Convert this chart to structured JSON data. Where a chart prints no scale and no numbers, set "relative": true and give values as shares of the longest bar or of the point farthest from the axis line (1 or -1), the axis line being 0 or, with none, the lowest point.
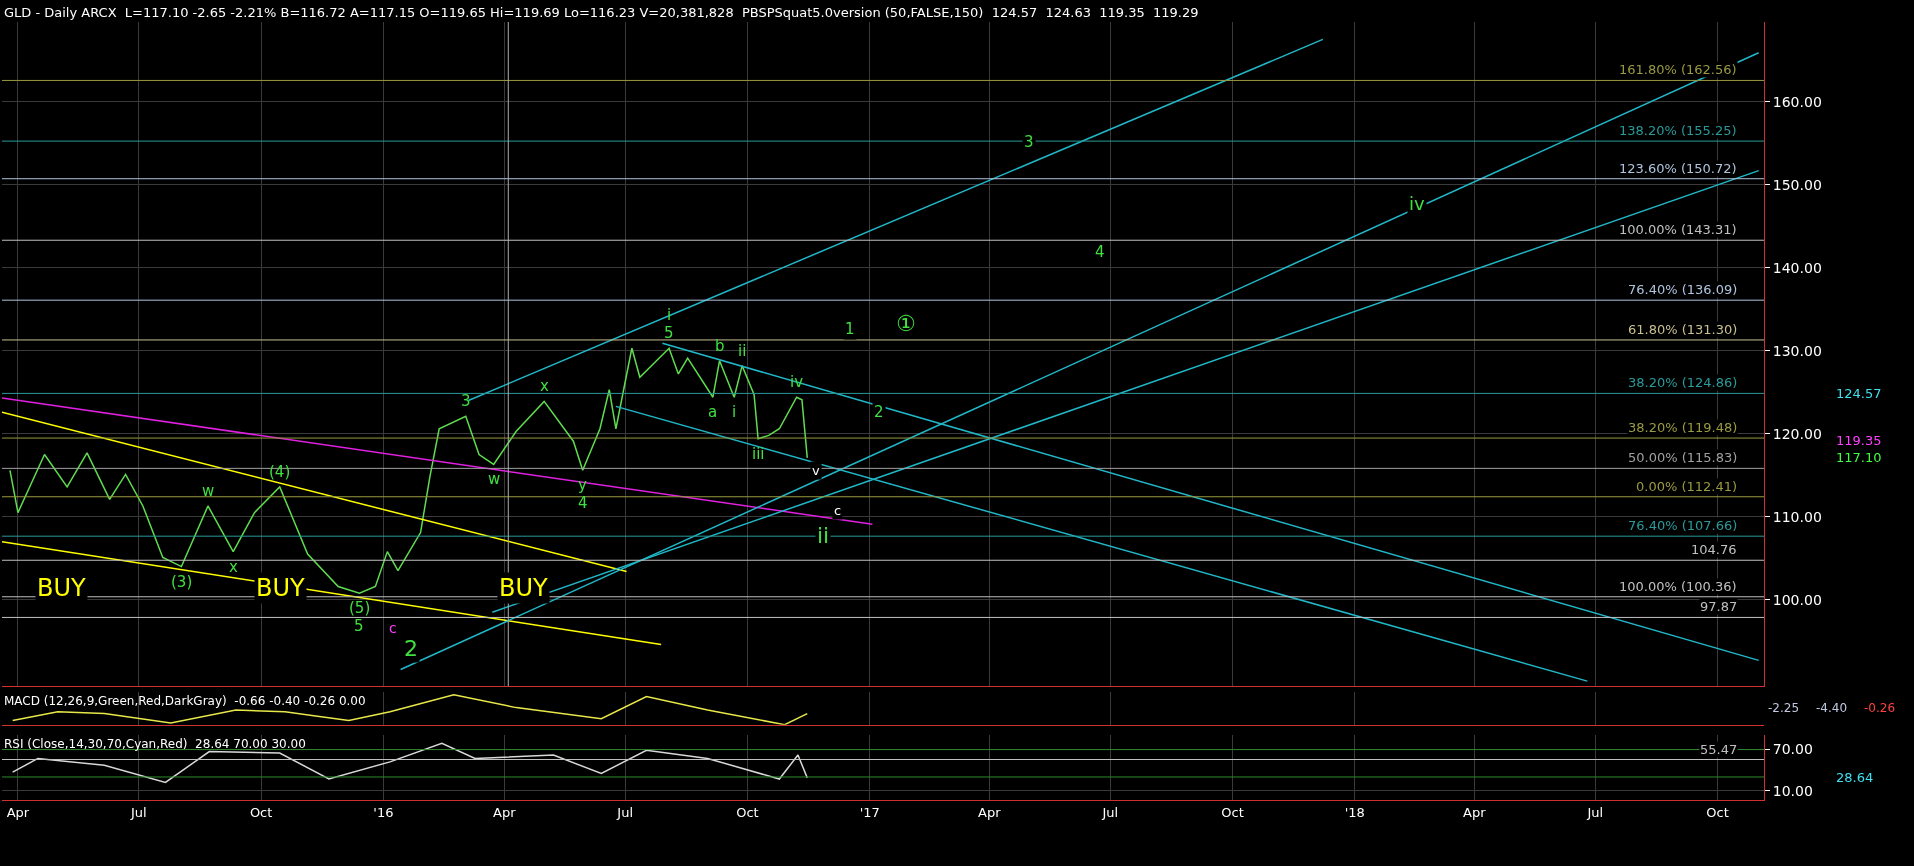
{
  "chart_data": [
    {
      "type": "line",
      "title": "GLD - Daily ARCX  L=117.10 -2.65 -2.21% B=116.72 A=117.15 O=119.65 Hi=119.69 Lo=116.23 V=20,381,828  PBSPSquat5.0version (50,FALSE,150)  124.57  124.63  119.35  119.29",
      "series": [
        {
          "color": "#5fdc4f",
          "x": [
            "2015-03-26",
            "2015-04-01",
            "2015-04-21",
            "2015-05-08",
            "2015-05-23",
            "2015-06-09",
            "2015-06-21",
            "2015-07-04",
            "2015-07-19",
            "2015-08-02",
            "2015-08-22",
            "2015-09-10",
            "2015-09-26",
            "2015-10-15",
            "2015-11-05",
            "2015-11-28",
            "2015-12-14",
            "2015-12-26",
            "2016-01-04",
            "2016-01-12",
            "2016-01-29",
            "2016-02-05",
            "2016-02-12",
            "2016-03-03",
            "2016-03-13",
            "2016-03-24",
            "2016-04-10",
            "2016-05-01",
            "2016-05-23",
            "2016-05-30",
            "2016-06-12",
            "2016-06-19",
            "2016-06-24",
            "2016-07-06",
            "2016-07-12",
            "2016-08-03",
            "2016-08-10",
            "2016-08-17",
            "2016-09-05",
            "2016-09-10",
            "2016-09-21",
            "2016-09-27",
            "2016-10-06",
            "2016-10-09",
            "2016-10-17",
            "2016-10-25",
            "2016-11-07",
            "2016-11-11",
            "2016-11-15"
          ],
          "values": [
            115.6,
            110.5,
            117.5,
            113.6,
            117.7,
            112.1,
            115.1,
            111.3,
            105.1,
            104.0,
            111.3,
            105.8,
            110.5,
            113.6,
            105.5,
            101.6,
            100.8,
            101.6,
            105.8,
            103.5,
            108.1,
            114.8,
            120.6,
            122.1,
            117.5,
            116.3,
            120.3,
            123.9,
            119.1,
            115.6,
            120.6,
            125.3,
            120.6,
            130.3,
            126.8,
            130.3,
            127.2,
            129.1,
            124.4,
            128.8,
            124.4,
            128.2,
            124.7,
            119.4,
            119.8,
            120.6,
            124.4,
            124.1,
            117.1
          ]
        },
        {
          "color": "#e020e0",
          "x": [
            "2015-03-20",
            "2017-01-03"
          ],
          "values": [
            124.3,
            109.1
          ]
        },
        {
          "color": "#ffff00",
          "x": [
            "2015-03-20",
            "2016-07-02"
          ],
          "values": [
            122.6,
            103.4
          ]
        },
        {
          "color": "#ffff00",
          "x": [
            "2015-03-20",
            "2016-07-28"
          ],
          "values": [
            107.0,
            94.6
          ]
        },
        {
          "color": "#20b8c8",
          "x": [
            "2016-03-05",
            "2017-12-08"
          ],
          "values": [
            124.0,
            167.5
          ]
        },
        {
          "color": "#20b8c8",
          "x": [
            "2016-01-14",
            "2018-11-01"
          ],
          "values": [
            91.6,
            165.9
          ]
        },
        {
          "color": "#20b8c8",
          "x": [
            "2016-03-23",
            "2018-11-01"
          ],
          "values": [
            98.5,
            151.7
          ]
        },
        {
          "color": "#20b8c8",
          "x": [
            "2016-07-29",
            "2018-11-01"
          ],
          "values": [
            130.9,
            92.7
          ]
        },
        {
          "color": "#20b8c8",
          "x": [
            "2016-06-24",
            "2018-06-25"
          ],
          "values": [
            123.3,
            90.2
          ]
        }
      ],
      "xlim": [
        "2015-03-20",
        "2018-11-05"
      ],
      "xticks": [
        {
          "value": "2015-04-01",
          "label": null
        },
        {
          "value": "2015-07-01",
          "label": null
        },
        {
          "value": "2015-10-01",
          "label": null
        },
        {
          "value": "2016-01-01",
          "label": null
        },
        {
          "value": "2016-04-01",
          "label": null
        },
        {
          "value": "2016-07-01",
          "label": null
        },
        {
          "value": "2016-10-01",
          "label": null
        },
        {
          "value": "2017-01-01",
          "label": null
        },
        {
          "value": "2017-04-01",
          "label": null
        },
        {
          "value": "2017-07-01",
          "label": null
        },
        {
          "value": "2017-10-01",
          "label": null
        },
        {
          "value": "2018-01-01",
          "label": null
        },
        {
          "value": "2018-04-01",
          "label": null
        },
        {
          "value": "2018-07-01",
          "label": null
        },
        {
          "value": "2018-10-01",
          "label": null
        }
      ],
      "ylim": [
        89.6,
        169.6
      ],
      "yticks": [
        {
          "value": 100,
          "label": "100.00"
        },
        {
          "value": 110,
          "label": "110.00"
        },
        {
          "value": 120,
          "label": "120.00"
        },
        {
          "value": 130,
          "label": "130.00"
        },
        {
          "value": 140,
          "label": "140.00"
        },
        {
          "value": 150,
          "label": "150.00"
        },
        {
          "value": 160,
          "label": "160.00"
        }
      ],
      "tick_labels": "y",
      "grid": true,
      "ref_lines": [
        {
          "axis": "y",
          "value": 162.56,
          "label": "161.80% (162.56)",
          "color": "#9a9a40"
        },
        {
          "axis": "y",
          "value": 155.25,
          "label": "138.20% (155.25)",
          "color": "#2a9a9a"
        },
        {
          "axis": "y",
          "value": 150.72,
          "label": "123.60% (150.72)",
          "color": "#b0c4de"
        },
        {
          "axis": "y",
          "value": 143.31,
          "label": "100.00% (143.31)",
          "color": "#c0c0c0"
        },
        {
          "axis": "y",
          "value": 136.09,
          "label": "76.40% (136.09)",
          "color": "#b0c4de"
        },
        {
          "axis": "y",
          "value": 131.3,
          "label": "61.80% (131.30)",
          "color": "#c8c090"
        },
        {
          "axis": "y",
          "value": 124.86,
          "label": "38.20% (124.86)",
          "color": "#2a9a9a"
        },
        {
          "axis": "y",
          "value": 119.48,
          "label": "38.20% (119.48)",
          "color": "#9a9a40"
        },
        {
          "axis": "y",
          "value": 115.83,
          "label": "50.00% (115.83)",
          "color": "#a0a0a0"
        },
        {
          "axis": "y",
          "value": 112.41,
          "label": "0.00% (112.41)",
          "color": "#9a9a40"
        },
        {
          "axis": "y",
          "value": 107.66,
          "label": "76.40% (107.66)",
          "color": "#2a9a9a"
        },
        {
          "axis": "y",
          "value": 104.76,
          "label": "104.76",
          "color": "#c0c0c0"
        },
        {
          "axis": "y",
          "value": 100.36,
          "label": "100.00% (100.36)",
          "color": "#c0c0c0"
        },
        {
          "axis": "y",
          "value": 97.87,
          "label": "97.87",
          "color": "#c0c0c0"
        },
        {
          "axis": "x",
          "value": "2016-04-04",
          "color": "#b0b0b0"
        }
      ],
      "annotations": [
        "BUY",
        "BUY",
        "BUY",
        "v",
        "c",
        "ii",
        "1",
        "2",
        "①",
        "3",
        "4",
        "iv",
        "124.57",
        "119.35",
        "117.10",
        "c",
        "2",
        {
          "text": "(3)",
          "x": "2015-08-02",
          "y": 104.0
        },
        {
          "text": "w",
          "x": "2015-08-22",
          "y": 111.3
        },
        {
          "text": "x",
          "x": "2015-09-10",
          "y": 105.8
        },
        {
          "text": "(4)",
          "x": "2015-10-15",
          "y": 113.6
        },
        {
          "text": "(5)",
          "x": "2015-12-14",
          "y": 100.8
        },
        {
          "text": "5",
          "x": "2015-12-14",
          "y": 100.8
        },
        {
          "text": "3",
          "x": "2016-03-03",
          "y": 122.1
        },
        {
          "text": "w",
          "x": "2016-03-24",
          "y": 116.3
        },
        {
          "text": "x",
          "x": "2016-05-01",
          "y": 123.9
        },
        {
          "text": "y",
          "x": "2016-05-30",
          "y": 115.6
        },
        {
          "text": "4",
          "x": "2016-05-30",
          "y": 115.6
        },
        {
          "text": "5",
          "x": "2016-08-03",
          "y": 130.3
        },
        {
          "text": "i",
          "x": "2016-08-03",
          "y": 130.3
        },
        {
          "text": "a",
          "x": "2016-09-05",
          "y": 124.4
        },
        {
          "text": "b",
          "x": "2016-09-10",
          "y": 128.8
        },
        {
          "text": "i",
          "x": "2016-09-21",
          "y": 124.4
        },
        {
          "text": "ii",
          "x": "2016-09-27",
          "y": 128.2
        },
        {
          "text": "iii",
          "x": "2016-10-09",
          "y": 119.4
        },
        {
          "text": "iv",
          "x": "2016-11-07",
          "y": 124.4
        }
      ]
    },
    {
      "type": "line",
      "title": "MACD (12,26,9,Green,Red,DarkGray)  -0.66 -0.40 -0.26 0.00",
      "relative": true,
      "series": [
        {
          "color": "#e8e84a",
          "x": [
            "2015-03-28",
            "2015-05-01",
            "2015-06-05",
            "2015-07-25",
            "2015-09-12",
            "2015-10-19",
            "2015-11-11",
            "2015-12-06",
            "2016-01-06",
            "2016-02-23",
            "2016-04-10",
            "2016-06-13",
            "2016-07-17",
            "2016-09-01",
            "2016-10-29",
            "2016-11-15"
          ],
          "values": [
            0.14,
            0.43,
            0.37,
            0.06,
            0.49,
            0.43,
            0.29,
            0.14,
            0.43,
            1,
            0.57,
            0.2,
            0.94,
            0.49,
            0,
            0.37
          ]
        }
      ],
      "xlim": [
        "2015-03-20",
        "2018-11-05"
      ],
      "tick_labels": false,
      "grid": true,
      "annotations": [
        "-2.25",
        "-4.40",
        "-0.26"
      ]
    },
    {
      "type": "line",
      "title": "RSI (Close,14,30,70,Cyan,Red)  28.64 70.00 30.00",
      "series": [
        {
          "color": "#d8d8d8",
          "x": [
            "2015-03-28",
            "2015-04-16",
            "2015-06-05",
            "2015-07-21",
            "2015-08-23",
            "2015-10-15",
            "2015-11-21",
            "2016-01-06",
            "2016-02-14",
            "2016-03-10",
            "2016-05-08",
            "2016-06-13",
            "2016-07-17",
            "2016-09-01",
            "2016-10-25",
            "2016-11-08",
            "2016-11-15"
          ],
          "values": [
            37,
            57,
            47,
            22,
            67,
            65,
            27,
            52,
            79,
            57,
            62,
            35,
            69,
            57,
            27,
            62,
            28.64
          ]
        }
      ],
      "xlim": [
        "2015-03-20",
        "2018-11-05"
      ],
      "xticks": [
        {
          "value": "2015-04-01",
          "label": "Apr"
        },
        {
          "value": "2015-07-01",
          "label": "Jul"
        },
        {
          "value": "2015-10-01",
          "label": "Oct"
        },
        {
          "value": "2016-01-01",
          "label": "'16"
        },
        {
          "value": "2016-04-01",
          "label": "Apr"
        },
        {
          "value": "2016-07-01",
          "label": "Jul"
        },
        {
          "value": "2016-10-01",
          "label": "Oct"
        },
        {
          "value": "2017-01-01",
          "label": "'17"
        },
        {
          "value": "2017-04-01",
          "label": "Apr"
        },
        {
          "value": "2017-07-01",
          "label": "Jul"
        },
        {
          "value": "2017-10-01",
          "label": "Oct"
        },
        {
          "value": "2018-01-01",
          "label": "'18"
        },
        {
          "value": "2018-04-01",
          "label": "Apr"
        },
        {
          "value": "2018-07-01",
          "label": "Jul"
        },
        {
          "value": "2018-10-01",
          "label": "Oct"
        }
      ],
      "ylim": [
        -4,
        91
      ],
      "yticks": [
        {
          "value": 10,
          "label": "10.00"
        },
        {
          "value": 70,
          "label": "70.00"
        }
      ],
      "grid": true,
      "ref_lines": [
        {
          "axis": "y",
          "value": 70,
          "color": "#2a8a2a"
        },
        {
          "axis": "y",
          "value": 30,
          "color": "#2a8a2a"
        },
        {
          "axis": "y",
          "value": 55.47,
          "label": "55.47",
          "color": "#c0c0c0"
        }
      ],
      "annotations": [
        "28.64"
      ]
    }
  ]
}
